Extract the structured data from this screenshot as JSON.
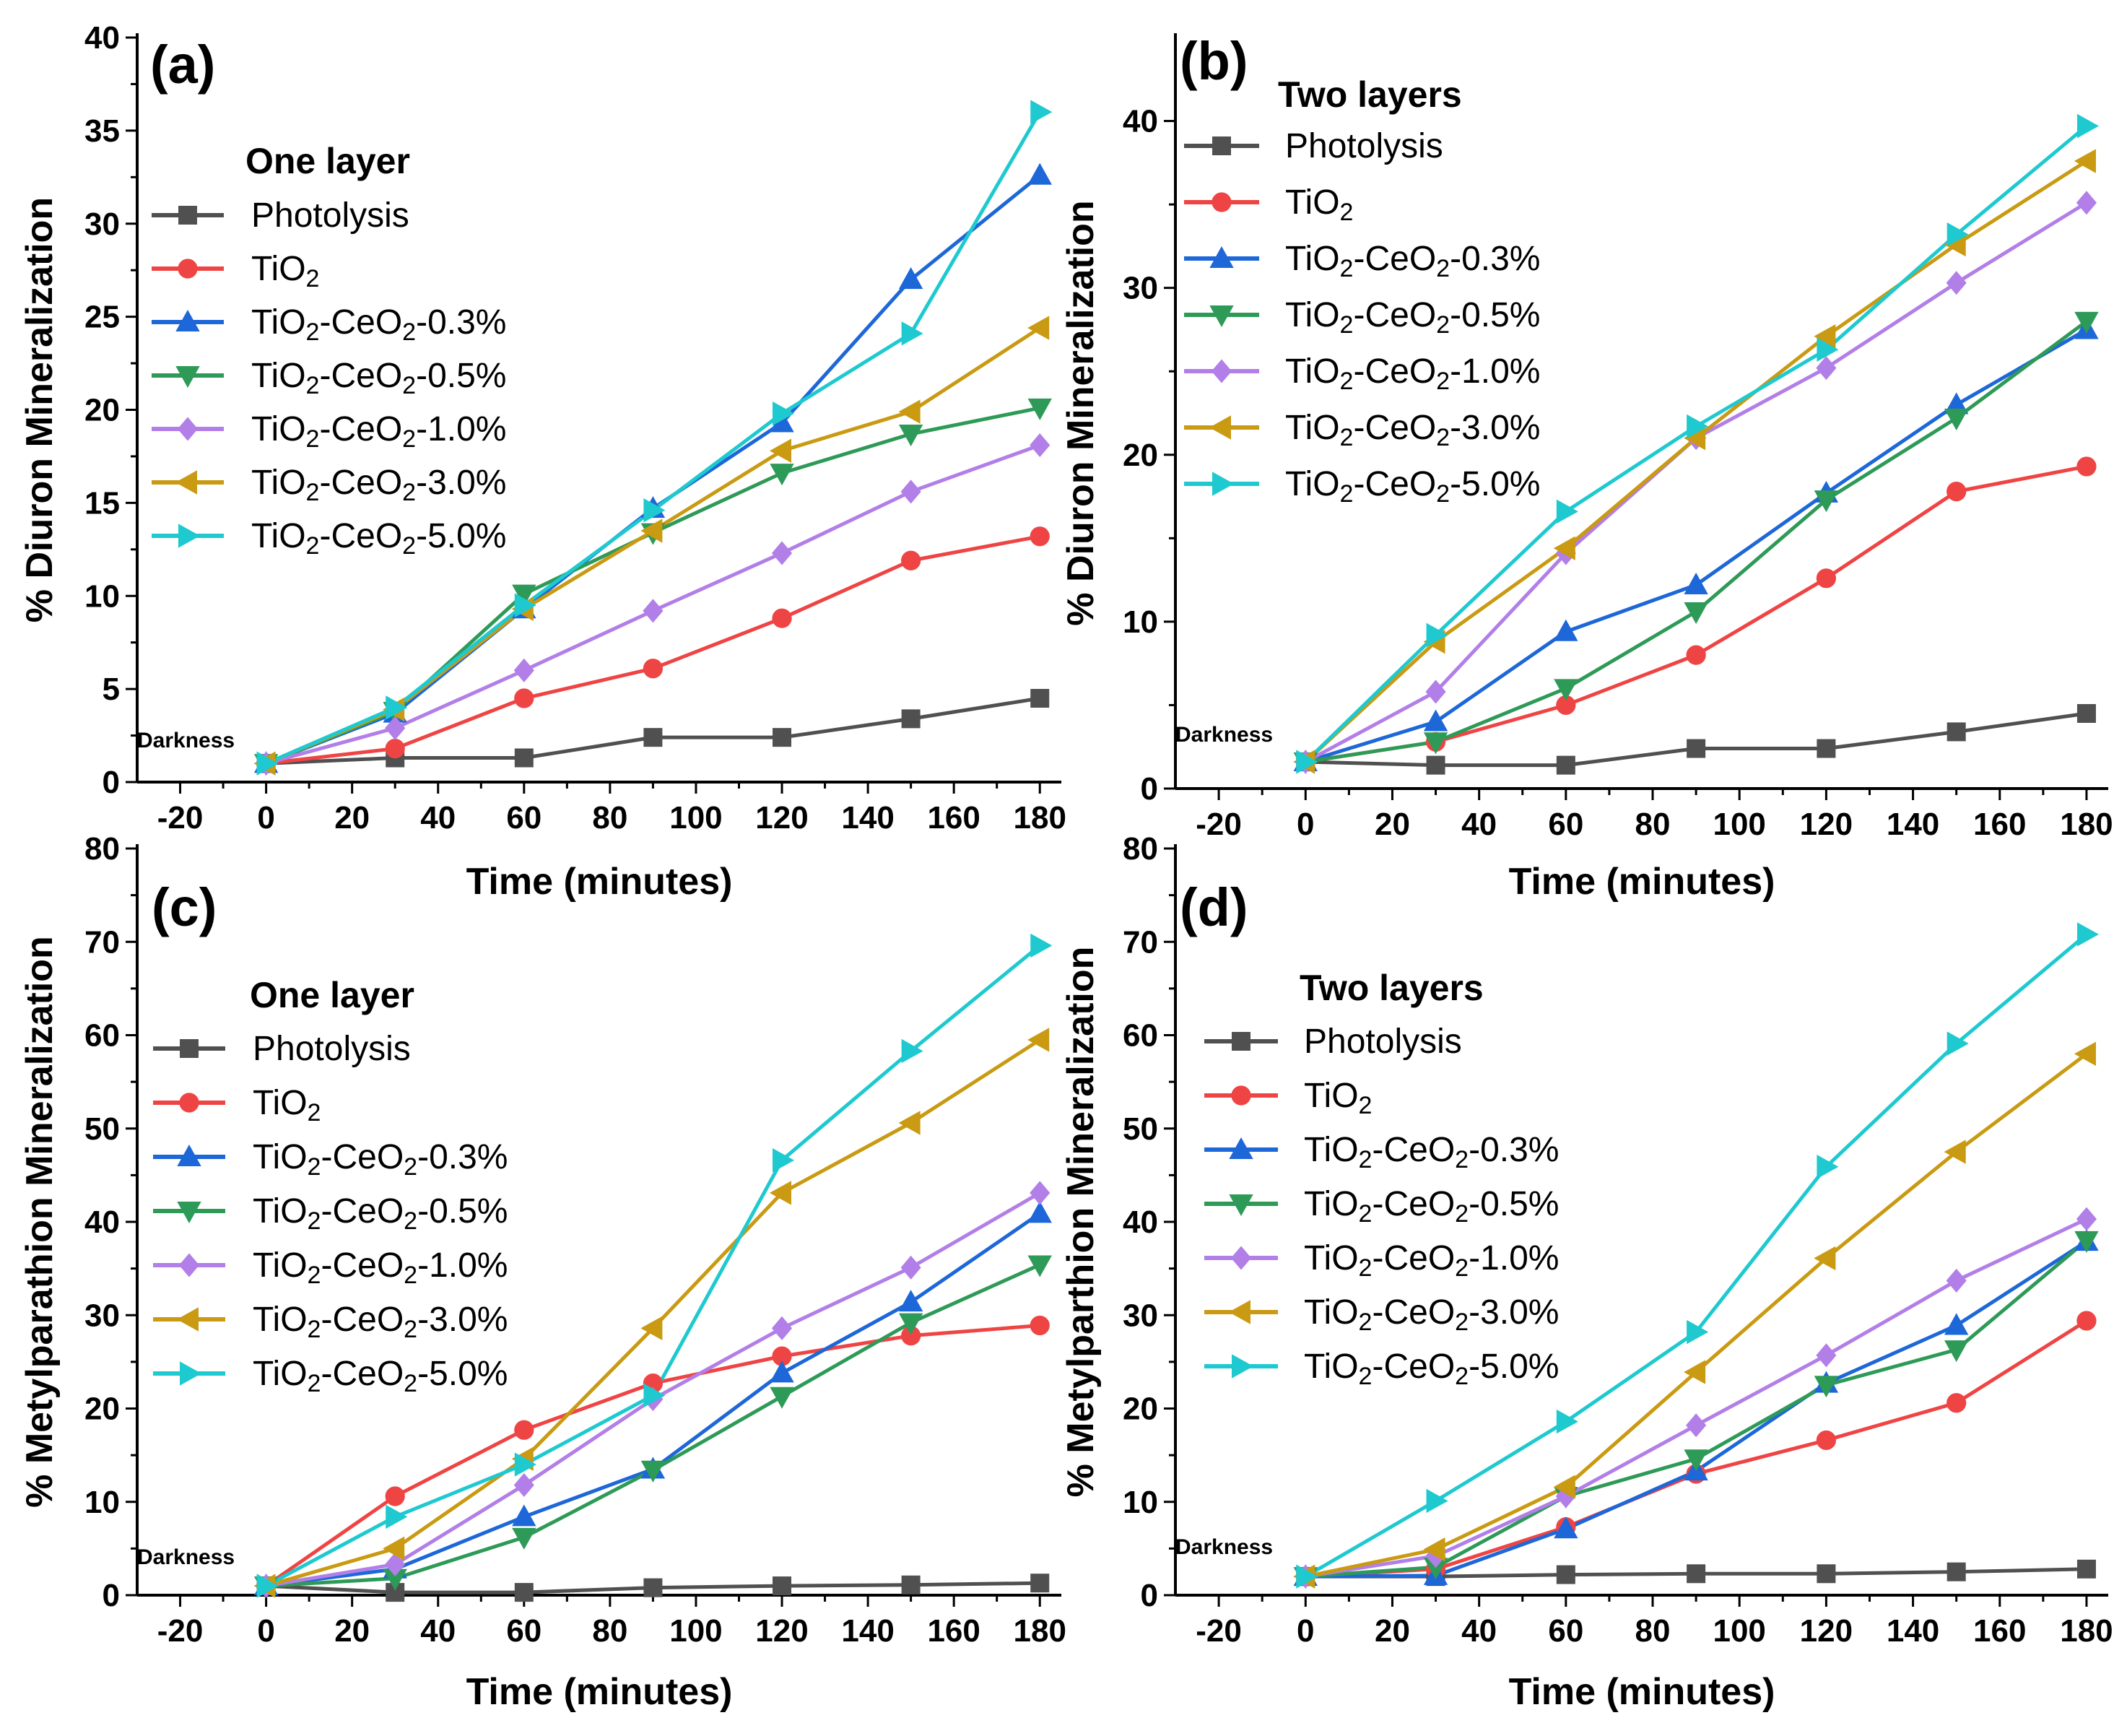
{
  "figure": {
    "series_styles": [
      {
        "key": "photolysis",
        "color": "#505050",
        "marker": "square"
      },
      {
        "key": "tio2",
        "color": "#ef4444",
        "marker": "circle"
      },
      {
        "key": "tc03",
        "color": "#1d67d8",
        "marker": "triangle-up"
      },
      {
        "key": "tc05",
        "color": "#2e9a57",
        "marker": "triangle-down"
      },
      {
        "key": "tc10",
        "color": "#b27ee8",
        "marker": "diamond"
      },
      {
        "key": "tc30",
        "color": "#c99a12",
        "marker": "triangle-left"
      },
      {
        "key": "tc50",
        "color": "#1ec9cf",
        "marker": "triangle-right"
      }
    ],
    "legend_label_parts": [
      [
        "Photolysis"
      ],
      [
        "TiO",
        "2",
        ""
      ],
      [
        "TiO",
        "2",
        "-CeO",
        "2",
        "-0.3%"
      ],
      [
        "TiO",
        "2",
        "-CeO",
        "2",
        "-0.5%"
      ],
      [
        "TiO",
        "2",
        "-CeO",
        "2",
        "-1.0%"
      ],
      [
        "TiO",
        "2",
        "-CeO",
        "2",
        "-3.0%"
      ],
      [
        "TiO",
        "2",
        "-CeO",
        "2",
        "-5.0%"
      ]
    ]
  },
  "chart_data": [
    {
      "type": "line",
      "panel_label": "(a)",
      "legend_title": "One layer",
      "annotation": "Darkness",
      "xlabel": "Time (minutes)",
      "ylabel": "% Diuron Mineralization",
      "xlim": [
        -30,
        185
      ],
      "ylim": [
        0,
        40
      ],
      "xticks": [
        -20,
        0,
        20,
        40,
        60,
        80,
        100,
        120,
        140,
        160,
        180
      ],
      "yticks": [
        0,
        5,
        10,
        15,
        20,
        25,
        30,
        35,
        40
      ],
      "x": [
        0,
        30,
        60,
        90,
        120,
        150,
        180
      ],
      "series": [
        {
          "name": "Photolysis",
          "values": [
            1.0,
            1.3,
            1.3,
            2.4,
            2.4,
            3.4,
            4.5
          ]
        },
        {
          "name": "TiO2",
          "values": [
            1.0,
            1.8,
            4.5,
            6.1,
            8.8,
            11.9,
            13.2
          ]
        },
        {
          "name": "TiO2-CeO2-0.3%",
          "values": [
            1.0,
            3.7,
            9.3,
            14.7,
            19.3,
            27.0,
            32.6
          ]
        },
        {
          "name": "TiO2-CeO2-0.5%",
          "values": [
            1.0,
            3.8,
            10.1,
            13.4,
            16.6,
            18.7,
            20.1
          ]
        },
        {
          "name": "TiO2-CeO2-1.0%",
          "values": [
            1.0,
            2.9,
            6.0,
            9.2,
            12.3,
            15.6,
            18.1
          ]
        },
        {
          "name": "TiO2-CeO2-3.0%",
          "values": [
            1.0,
            3.9,
            9.3,
            13.5,
            17.8,
            19.9,
            24.4
          ]
        },
        {
          "name": "TiO2-CeO2-5.0%",
          "values": [
            1.0,
            4.0,
            9.5,
            14.6,
            19.8,
            24.1,
            36.0
          ]
        }
      ]
    },
    {
      "type": "line",
      "panel_label": "(b)",
      "legend_title": "Two layers",
      "annotation": "Darkness",
      "xlabel": "Time (minutes)",
      "ylabel": "% Diuron Mineralization",
      "xlim": [
        -30,
        185
      ],
      "ylim": [
        0,
        45
      ],
      "xticks": [
        -20,
        0,
        20,
        40,
        60,
        80,
        100,
        120,
        140,
        160,
        180
      ],
      "yticks": [
        0,
        10,
        20,
        30,
        40
      ],
      "x": [
        0,
        30,
        60,
        90,
        120,
        150,
        180
      ],
      "series": [
        {
          "name": "Photolysis",
          "values": [
            1.6,
            1.4,
            1.4,
            2.4,
            2.4,
            3.4,
            4.5
          ]
        },
        {
          "name": "TiO2",
          "values": [
            1.6,
            2.8,
            5.0,
            8.0,
            12.6,
            17.8,
            19.3
          ]
        },
        {
          "name": "TiO2-CeO2-0.3%",
          "values": [
            1.6,
            4.0,
            9.4,
            12.2,
            17.7,
            23.0,
            27.5
          ]
        },
        {
          "name": "TiO2-CeO2-0.5%",
          "values": [
            1.6,
            2.8,
            6.0,
            10.6,
            17.3,
            22.2,
            28.0
          ]
        },
        {
          "name": "TiO2-CeO2-1.0%",
          "values": [
            1.6,
            5.8,
            14.1,
            21.0,
            25.2,
            30.3,
            35.1
          ]
        },
        {
          "name": "TiO2-CeO2-3.0%",
          "values": [
            1.6,
            8.8,
            14.4,
            21.0,
            27.1,
            32.6,
            37.6
          ]
        },
        {
          "name": "TiO2-CeO2-5.0%",
          "values": [
            1.6,
            9.2,
            16.6,
            21.7,
            26.3,
            33.2,
            39.7
          ]
        }
      ]
    },
    {
      "type": "line",
      "panel_label": "(c)",
      "legend_title": "One layer",
      "annotation": "Darkness",
      "xlabel": "Time (minutes)",
      "ylabel": "% Metylparathion Mineralization",
      "xlim": [
        -30,
        185
      ],
      "ylim": [
        0,
        80
      ],
      "xticks": [
        -20,
        0,
        20,
        40,
        60,
        80,
        100,
        120,
        140,
        160,
        180
      ],
      "yticks": [
        0,
        10,
        20,
        30,
        40,
        50,
        60,
        70,
        80
      ],
      "x": [
        0,
        30,
        60,
        90,
        120,
        150,
        180
      ],
      "series": [
        {
          "name": "Photolysis",
          "values": [
            1.0,
            0.3,
            0.3,
            0.8,
            1.0,
            1.1,
            1.3
          ]
        },
        {
          "name": "TiO2",
          "values": [
            1.0,
            10.6,
            17.7,
            22.7,
            25.6,
            27.8,
            28.9
          ]
        },
        {
          "name": "TiO2-CeO2-0.3%",
          "values": [
            1.0,
            2.8,
            8.4,
            13.5,
            23.8,
            31.4,
            40.9
          ]
        },
        {
          "name": "TiO2-CeO2-0.5%",
          "values": [
            1.0,
            1.8,
            6.2,
            13.4,
            21.3,
            29.2,
            35.4
          ]
        },
        {
          "name": "TiO2-CeO2-1.0%",
          "values": [
            1.0,
            3.3,
            11.8,
            21.0,
            28.6,
            35.1,
            43.1
          ]
        },
        {
          "name": "TiO2-CeO2-3.0%",
          "values": [
            1.0,
            5.0,
            14.6,
            28.6,
            43.1,
            50.6,
            59.5
          ]
        },
        {
          "name": "TiO2-CeO2-5.0%",
          "values": [
            1.0,
            8.4,
            14.0,
            21.4,
            46.6,
            58.3,
            69.6
          ]
        }
      ]
    },
    {
      "type": "line",
      "panel_label": "(d)",
      "legend_title": "Two layers",
      "annotation": "Darkness",
      "xlabel": "Time (minutes)",
      "ylabel": "% Metylparthion Mineralization",
      "xlim": [
        -30,
        185
      ],
      "ylim": [
        0,
        80
      ],
      "xticks": [
        -20,
        0,
        20,
        40,
        60,
        80,
        100,
        120,
        140,
        160,
        180
      ],
      "yticks": [
        0,
        10,
        20,
        30,
        40,
        50,
        60,
        70,
        80
      ],
      "x": [
        0,
        30,
        60,
        90,
        120,
        150,
        180
      ],
      "series": [
        {
          "name": "Photolysis",
          "values": [
            2.0,
            2.0,
            2.2,
            2.3,
            2.3,
            2.5,
            2.8
          ]
        },
        {
          "name": "TiO2",
          "values": [
            2.0,
            2.8,
            7.3,
            13.0,
            16.6,
            20.6,
            29.4
          ]
        },
        {
          "name": "TiO2-CeO2-0.3%",
          "values": [
            2.0,
            2.1,
            7.1,
            13.3,
            22.7,
            28.9,
            37.9
          ]
        },
        {
          "name": "TiO2-CeO2-0.5%",
          "values": [
            2.0,
            3.0,
            10.6,
            14.6,
            22.5,
            26.3,
            38.0
          ]
        },
        {
          "name": "TiO2-CeO2-1.0%",
          "values": [
            2.0,
            4.2,
            10.6,
            18.2,
            25.7,
            33.7,
            40.3
          ]
        },
        {
          "name": "TiO2-CeO2-3.0%",
          "values": [
            2.0,
            4.9,
            11.6,
            23.9,
            36.1,
            47.5,
            58.0
          ]
        },
        {
          "name": "TiO2-CeO2-5.0%",
          "values": [
            2.0,
            10.1,
            18.6,
            28.2,
            45.9,
            59.1,
            70.8
          ]
        }
      ]
    }
  ]
}
